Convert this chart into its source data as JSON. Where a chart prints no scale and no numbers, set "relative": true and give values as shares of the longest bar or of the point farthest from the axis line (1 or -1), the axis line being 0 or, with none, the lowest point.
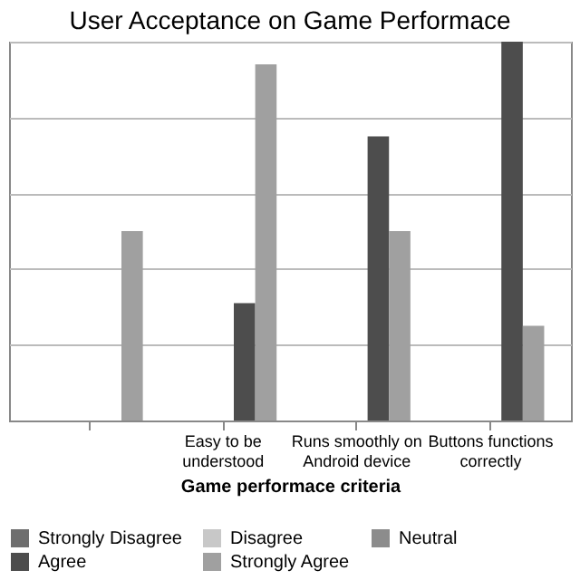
{
  "chart_data": {
    "type": "bar",
    "title": "User Acceptance on Game Performace",
    "xlabel": "Game performace criteria",
    "categories": [
      null,
      "Easy to be understood",
      "Runs smoothly on Android device",
      "Buttons functions correctly"
    ],
    "relative": true,
    "grid": "y",
    "legend": "bottom",
    "series": [
      {
        "name": "Strongly Disagree",
        "color": "#6e6e6e",
        "values": [
          null,
          null,
          null,
          null
        ]
      },
      {
        "name": "Disagree",
        "color": "#c8c8c8",
        "values": [
          null,
          null,
          null,
          null
        ]
      },
      {
        "name": "Neutral",
        "color": "#8c8c8c",
        "values": [
          null,
          null,
          null,
          null
        ]
      },
      {
        "name": "Agree",
        "color": "#4d4d4d",
        "values": [
          null,
          0.31,
          0.75,
          1
        ]
      },
      {
        "name": "Strongly Agree",
        "color": "#a0a0a0",
        "values": [
          0.5,
          0.94,
          0.5,
          0.25
        ]
      }
    ]
  }
}
